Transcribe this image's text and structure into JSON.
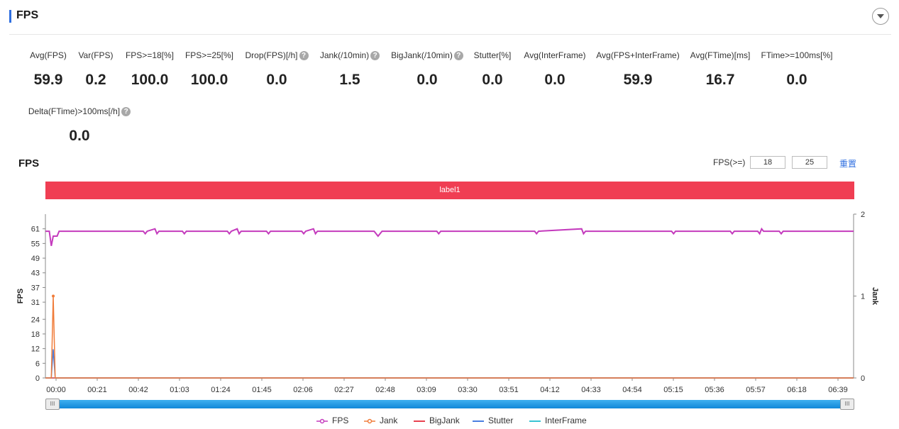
{
  "header": {
    "title": "FPS"
  },
  "metrics": [
    {
      "label": "Avg(FPS)",
      "value": "59.9",
      "help": false
    },
    {
      "label": "Var(FPS)",
      "value": "0.2",
      "help": false
    },
    {
      "label": "FPS>=18[%]",
      "value": "100.0",
      "help": false
    },
    {
      "label": "FPS>=25[%]",
      "value": "100.0",
      "help": false
    },
    {
      "label": "Drop(FPS)[/h]",
      "value": "0.0",
      "help": true
    },
    {
      "label": "Jank(/10min)",
      "value": "1.5",
      "help": true
    },
    {
      "label": "BigJank(/10min)",
      "value": "0.0",
      "help": true
    },
    {
      "label": "Stutter[%]",
      "value": "0.0",
      "help": false
    },
    {
      "label": "Avg(InterFrame)",
      "value": "0.0",
      "help": false
    },
    {
      "label": "Avg(FPS+InterFrame)",
      "value": "59.9",
      "help": false
    },
    {
      "label": "Avg(FTime)[ms]",
      "value": "16.7",
      "help": false
    },
    {
      "label": "FTime>=100ms[%]",
      "value": "0.0",
      "help": false
    },
    {
      "label": "Delta(FTime)>100ms[/h]",
      "value": "0.0",
      "help": true
    }
  ],
  "chart_section": {
    "title": "FPS",
    "threshold_label": "FPS(>=)",
    "threshold_low": "18",
    "threshold_high": "25",
    "reset_label": "重置",
    "band_label": "label1"
  },
  "chart_data": {
    "type": "line",
    "x_ticks": [
      "00:00",
      "00:21",
      "00:42",
      "01:03",
      "01:24",
      "01:45",
      "02:06",
      "02:27",
      "02:48",
      "03:09",
      "03:30",
      "03:51",
      "04:12",
      "04:33",
      "04:54",
      "05:15",
      "05:36",
      "05:57",
      "06:18",
      "06:39"
    ],
    "x_range_seconds": [
      0,
      413
    ],
    "ylabel_left": "FPS",
    "ylabel_right": "Jank",
    "y_left_ticks": [
      0,
      6,
      12,
      18,
      24,
      31,
      37,
      43,
      49,
      55,
      61
    ],
    "y_left_range": [
      0,
      67
    ],
    "y_right_ticks": [
      0,
      1,
      2
    ],
    "y_right_range": [
      0,
      2
    ],
    "legend": [
      "FPS",
      "Jank",
      "BigJank",
      "Stutter",
      "InterFrame"
    ],
    "colors": {
      "FPS": "#c43bbd",
      "Jank": "#f07c3a",
      "BigJank": "#e8424f",
      "Stutter": "#4a7fe0",
      "InterFrame": "#39c4d4"
    },
    "series": [
      {
        "name": "FPS",
        "points": [
          [
            0,
            60
          ],
          [
            2,
            60
          ],
          [
            3,
            54
          ],
          [
            4,
            58
          ],
          [
            6,
            58
          ],
          [
            7,
            60
          ],
          [
            50,
            60
          ],
          [
            51,
            59
          ],
          [
            52,
            60
          ],
          [
            56,
            61
          ],
          [
            57,
            59
          ],
          [
            58,
            60
          ],
          [
            70,
            60
          ],
          [
            71,
            59
          ],
          [
            72,
            60
          ],
          [
            93,
            60
          ],
          [
            94,
            59
          ],
          [
            95,
            60
          ],
          [
            98,
            61
          ],
          [
            99,
            59
          ],
          [
            100,
            60
          ],
          [
            113,
            60
          ],
          [
            114,
            59
          ],
          [
            115,
            60
          ],
          [
            131,
            60
          ],
          [
            132,
            59
          ],
          [
            133,
            60
          ],
          [
            137,
            61
          ],
          [
            138,
            59
          ],
          [
            139,
            60
          ],
          [
            168,
            60
          ],
          [
            170,
            58
          ],
          [
            172,
            60
          ],
          [
            200,
            60
          ],
          [
            201,
            59
          ],
          [
            202,
            60
          ],
          [
            250,
            60
          ],
          [
            251,
            59
          ],
          [
            252,
            60
          ],
          [
            274,
            61
          ],
          [
            275,
            59
          ],
          [
            276,
            60
          ],
          [
            320,
            60
          ],
          [
            321,
            59
          ],
          [
            322,
            60
          ],
          [
            350,
            60
          ],
          [
            351,
            59
          ],
          [
            352,
            60
          ],
          [
            364,
            60
          ],
          [
            365,
            59
          ],
          [
            366,
            61
          ],
          [
            367,
            60
          ],
          [
            375,
            60
          ],
          [
            376,
            59
          ],
          [
            377,
            60
          ],
          [
            413,
            60
          ]
        ]
      },
      {
        "name": "Jank",
        "points": [
          [
            0,
            0
          ],
          [
            3,
            0
          ],
          [
            4,
            1
          ],
          [
            5,
            0
          ],
          [
            413,
            0
          ]
        ]
      },
      {
        "name": "BigJank",
        "points": [
          [
            0,
            0
          ],
          [
            413,
            0
          ]
        ]
      },
      {
        "name": "Stutter",
        "points": [
          [
            0,
            0
          ],
          [
            3,
            0
          ],
          [
            4,
            0.35
          ],
          [
            5,
            0
          ],
          [
            413,
            0
          ]
        ]
      },
      {
        "name": "InterFrame",
        "points": [
          [
            0,
            0
          ],
          [
            413,
            0
          ]
        ]
      }
    ]
  }
}
